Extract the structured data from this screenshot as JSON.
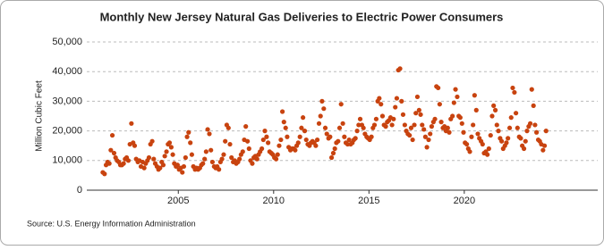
{
  "chart_data": {
    "type": "scatter",
    "title": "Monthly New Jersey Natural Gas Deliveries to Electric Power Consumers",
    "y_label": "Million Cubic Feet",
    "source": "Source: U.S. Energy Information Administration",
    "color": "#c8430f",
    "grid": true,
    "xlim": [
      2000.2,
      2027
    ],
    "xticks": [
      2005,
      2010,
      2015,
      2020
    ],
    "ylim": [
      0,
      50000
    ],
    "yticks": [
      0,
      {
        "value": 10000,
        "label": "10,000"
      },
      {
        "value": 20000,
        "label": "20,000"
      },
      {
        "value": 30000,
        "label": "30,000"
      },
      {
        "value": 40000,
        "label": "40,000"
      },
      {
        "value": 50000,
        "label": "50,000"
      }
    ],
    "x": [
      2001.04,
      2001.13,
      2001.21,
      2001.29,
      2001.38,
      2001.46,
      2001.54,
      2001.63,
      2001.71,
      2001.79,
      2001.88,
      2001.96,
      2002.04,
      2002.13,
      2002.21,
      2002.29,
      2002.38,
      2002.46,
      2002.54,
      2002.63,
      2002.71,
      2002.79,
      2002.88,
      2002.96,
      2003.04,
      2003.13,
      2003.21,
      2003.29,
      2003.38,
      2003.46,
      2003.54,
      2003.63,
      2003.71,
      2003.79,
      2003.88,
      2003.96,
      2004.04,
      2004.13,
      2004.21,
      2004.29,
      2004.38,
      2004.46,
      2004.54,
      2004.63,
      2004.71,
      2004.79,
      2004.88,
      2004.96,
      2005.04,
      2005.13,
      2005.21,
      2005.29,
      2005.38,
      2005.46,
      2005.54,
      2005.63,
      2005.71,
      2005.79,
      2005.88,
      2005.96,
      2006.04,
      2006.13,
      2006.21,
      2006.29,
      2006.38,
      2006.46,
      2006.54,
      2006.63,
      2006.71,
      2006.79,
      2006.88,
      2006.96,
      2007.04,
      2007.13,
      2007.21,
      2007.29,
      2007.38,
      2007.46,
      2007.54,
      2007.63,
      2007.71,
      2007.79,
      2007.88,
      2007.96,
      2008.04,
      2008.13,
      2008.21,
      2008.29,
      2008.38,
      2008.46,
      2008.54,
      2008.63,
      2008.71,
      2008.79,
      2008.88,
      2008.96,
      2009.04,
      2009.13,
      2009.21,
      2009.29,
      2009.38,
      2009.46,
      2009.54,
      2009.63,
      2009.71,
      2009.79,
      2009.88,
      2009.96,
      2010.04,
      2010.13,
      2010.21,
      2010.29,
      2010.38,
      2010.46,
      2010.54,
      2010.63,
      2010.71,
      2010.79,
      2010.88,
      2010.96,
      2011.04,
      2011.13,
      2011.21,
      2011.29,
      2011.38,
      2011.46,
      2011.54,
      2011.63,
      2011.71,
      2011.79,
      2011.88,
      2011.96,
      2012.04,
      2012.13,
      2012.21,
      2012.29,
      2012.38,
      2012.46,
      2012.54,
      2012.63,
      2012.71,
      2012.79,
      2012.88,
      2012.96,
      2013.04,
      2013.13,
      2013.21,
      2013.29,
      2013.38,
      2013.46,
      2013.54,
      2013.63,
      2013.71,
      2013.79,
      2013.88,
      2013.96,
      2014.04,
      2014.13,
      2014.21,
      2014.29,
      2014.38,
      2014.46,
      2014.54,
      2014.63,
      2014.71,
      2014.79,
      2014.88,
      2014.96,
      2015.04,
      2015.13,
      2015.21,
      2015.29,
      2015.38,
      2015.46,
      2015.54,
      2015.63,
      2015.71,
      2015.79,
      2015.88,
      2015.96,
      2016.04,
      2016.13,
      2016.21,
      2016.29,
      2016.38,
      2016.46,
      2016.54,
      2016.63,
      2016.71,
      2016.79,
      2016.88,
      2016.96,
      2017.04,
      2017.13,
      2017.21,
      2017.29,
      2017.38,
      2017.46,
      2017.54,
      2017.63,
      2017.71,
      2017.79,
      2017.88,
      2017.96,
      2018.04,
      2018.13,
      2018.21,
      2018.29,
      2018.38,
      2018.46,
      2018.54,
      2018.63,
      2018.71,
      2018.79,
      2018.88,
      2018.96,
      2019.04,
      2019.13,
      2019.21,
      2019.29,
      2019.38,
      2019.46,
      2019.54,
      2019.63,
      2019.71,
      2019.79,
      2019.88,
      2019.96,
      2020.04,
      2020.13,
      2020.21,
      2020.29,
      2020.38,
      2020.46,
      2020.54,
      2020.63,
      2020.71,
      2020.79,
      2020.88,
      2020.96,
      2021.04,
      2021.13,
      2021.21,
      2021.29,
      2021.38,
      2021.46,
      2021.54,
      2021.63,
      2021.71,
      2021.79,
      2021.88,
      2021.96,
      2022.04,
      2022.13,
      2022.21,
      2022.29,
      2022.38,
      2022.46,
      2022.54,
      2022.63,
      2022.71,
      2022.79,
      2022.88,
      2022.96,
      2023.04,
      2023.13,
      2023.21,
      2023.29,
      2023.38,
      2023.46,
      2023.54,
      2023.63,
      2023.71,
      2023.79,
      2023.88,
      2023.96,
      2024.04,
      2024.13,
      2024.21,
      2024.29
    ],
    "values": [
      6000,
      5500,
      8500,
      9500,
      9000,
      13500,
      18500,
      12500,
      11000,
      10000,
      9500,
      8500,
      8500,
      9000,
      10500,
      11000,
      10000,
      15500,
      22500,
      16000,
      15000,
      10500,
      9500,
      10000,
      8000,
      9500,
      7500,
      9000,
      10000,
      11000,
      15500,
      16500,
      10500,
      9000,
      8000,
      7000,
      7500,
      9500,
      8500,
      11500,
      13000,
      15500,
      16000,
      14500,
      12000,
      9000,
      8000,
      8500,
      7000,
      7500,
      6000,
      8000,
      11000,
      18000,
      19500,
      16000,
      12000,
      8000,
      7000,
      7500,
      7000,
      7500,
      8500,
      9000,
      10500,
      13000,
      20500,
      19000,
      13500,
      9500,
      8000,
      7500,
      8000,
      7000,
      9500,
      10500,
      12000,
      16500,
      22000,
      21000,
      15500,
      11000,
      9500,
      10000,
      9000,
      9500,
      10500,
      12000,
      13000,
      17000,
      21500,
      16500,
      14000,
      10000,
      9000,
      11000,
      11500,
      10500,
      12000,
      13000,
      14000,
      17000,
      20000,
      18000,
      16000,
      13000,
      12500,
      12000,
      11000,
      10500,
      12000,
      15000,
      17000,
      26500,
      23000,
      21000,
      18000,
      14500,
      13500,
      14000,
      14000,
      13500,
      15000,
      16000,
      18000,
      21000,
      24500,
      20000,
      17000,
      15500,
      15000,
      16000,
      16500,
      16000,
      15000,
      17000,
      22500,
      25000,
      30000,
      27500,
      21000,
      19000,
      17500,
      18000,
      11000,
      12500,
      14000,
      16000,
      16500,
      21000,
      29000,
      22500,
      18000,
      16000,
      15500,
      17000,
      15500,
      16000,
      17000,
      17500,
      20000,
      22000,
      24000,
      22000,
      21000,
      19000,
      18000,
      17500,
      17000,
      18000,
      21000,
      22000,
      24000,
      30000,
      31000,
      29000,
      25000,
      22000,
      21500,
      23000,
      23500,
      24500,
      22000,
      24000,
      28000,
      31000,
      40500,
      41000,
      30000,
      25500,
      22000,
      20000,
      19000,
      18500,
      21000,
      17000,
      22000,
      26000,
      31500,
      27000,
      25500,
      22000,
      20500,
      18000,
      14500,
      17000,
      19000,
      21500,
      23000,
      24000,
      35000,
      34500,
      29000,
      23000,
      21000,
      21500,
      20000,
      21000,
      19500,
      24000,
      25000,
      29500,
      34000,
      31500,
      25000,
      24500,
      22500,
      19500,
      16000,
      15500,
      14000,
      13000,
      18000,
      22000,
      32000,
      27000,
      19000,
      17500,
      16500,
      15500,
      12500,
      13000,
      12000,
      14000,
      18500,
      25000,
      28500,
      27000,
      22000,
      20000,
      17500,
      16500,
      14000,
      15000,
      16000,
      17500,
      21000,
      24500,
      34500,
      33000,
      26000,
      21000,
      18000,
      17500,
      15000,
      14000,
      16500,
      20000,
      21500,
      22500,
      34000,
      28500,
      22000,
      19500,
      17000,
      16500,
      15500,
      13500,
      15000,
      20000
    ]
  }
}
